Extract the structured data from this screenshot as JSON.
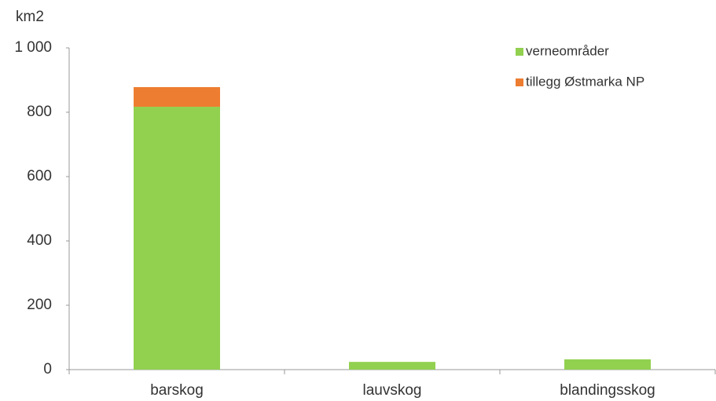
{
  "chart_data": {
    "type": "stacked_bar",
    "y_axis_label": "km2",
    "categories": [
      "barskog",
      "lauvskog",
      "blandingsskog"
    ],
    "series": [
      {
        "name": "verneområder",
        "color": "#92d050",
        "values": [
          817,
          24,
          32
        ]
      },
      {
        "name": "tillegg Østmarka NP",
        "color": "#ed7d31",
        "values": [
          61,
          0,
          0
        ]
      }
    ],
    "ylim": [
      0,
      1000
    ],
    "yticks": [
      0,
      200,
      400,
      600,
      800,
      {
        "value": 1000,
        "label": "1 000"
      }
    ],
    "grid": false,
    "legend": "top-right"
  }
}
